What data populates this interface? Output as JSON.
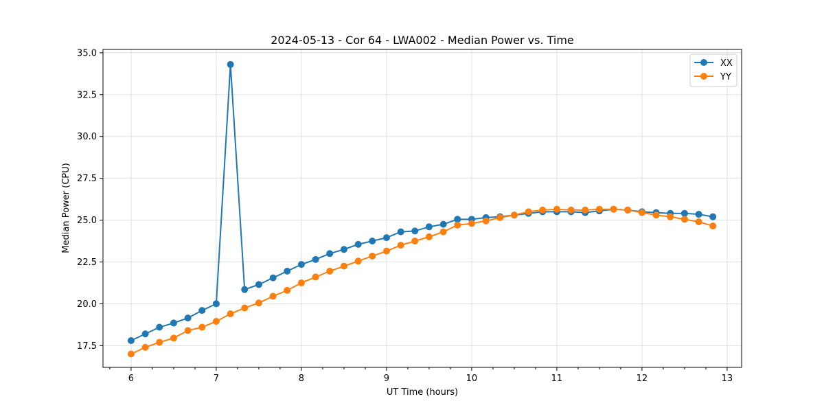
{
  "chart_data": {
    "type": "line",
    "title": "2024-05-13 - Cor 64 - LWA002 - Median Power vs. Time",
    "xlabel": "UT Time (hours)",
    "ylabel": "Median Power (CPU)",
    "xlim": [
      5.67,
      13.17
    ],
    "ylim": [
      16.2,
      35.2
    ],
    "xticks": [
      6,
      7,
      8,
      9,
      10,
      11,
      12,
      13
    ],
    "xtick_labels": [
      "6",
      "7",
      "8",
      "9",
      "10",
      "11",
      "12",
      "13"
    ],
    "yticks": [
      17.5,
      20.0,
      22.5,
      25.0,
      27.5,
      30.0,
      32.5,
      35.0
    ],
    "ytick_labels": [
      "17.5",
      "20.0",
      "22.5",
      "25.0",
      "27.5",
      "30.0",
      "32.5",
      "35.0"
    ],
    "grid": true,
    "legend_position": "top-right",
    "x": [
      6.0,
      6.167,
      6.333,
      6.5,
      6.667,
      6.833,
      7.0,
      7.167,
      7.333,
      7.5,
      7.667,
      7.833,
      8.0,
      8.167,
      8.333,
      8.5,
      8.667,
      8.833,
      9.0,
      9.167,
      9.333,
      9.5,
      9.667,
      9.833,
      10.0,
      10.167,
      10.333,
      10.5,
      10.667,
      10.833,
      11.0,
      11.167,
      11.333,
      11.5,
      11.667,
      11.833,
      12.0,
      12.167,
      12.333,
      12.5,
      12.667,
      12.833
    ],
    "series": [
      {
        "name": "XX",
        "color": "#1f77b4",
        "values": [
          17.8,
          18.2,
          18.6,
          18.85,
          19.15,
          19.6,
          20.0,
          34.3,
          20.85,
          21.15,
          21.55,
          21.95,
          22.35,
          22.65,
          23.0,
          23.25,
          23.55,
          23.75,
          23.95,
          24.3,
          24.35,
          24.6,
          24.75,
          25.05,
          25.05,
          25.15,
          25.2,
          25.3,
          25.4,
          25.5,
          25.5,
          25.5,
          25.45,
          25.55,
          25.65,
          25.6,
          25.5,
          25.45,
          25.4,
          25.4,
          25.35,
          25.2
        ]
      },
      {
        "name": "YY",
        "color": "#ff7f0e",
        "values": [
          17.0,
          17.4,
          17.7,
          17.95,
          18.4,
          18.6,
          18.95,
          19.4,
          19.75,
          20.05,
          20.45,
          20.8,
          21.25,
          21.6,
          21.95,
          22.25,
          22.55,
          22.85,
          23.15,
          23.5,
          23.75,
          24.0,
          24.3,
          24.7,
          24.8,
          24.95,
          25.15,
          25.3,
          25.5,
          25.6,
          25.65,
          25.6,
          25.6,
          25.65,
          25.65,
          25.6,
          25.45,
          25.3,
          25.2,
          25.05,
          24.9,
          24.65
        ]
      }
    ]
  }
}
